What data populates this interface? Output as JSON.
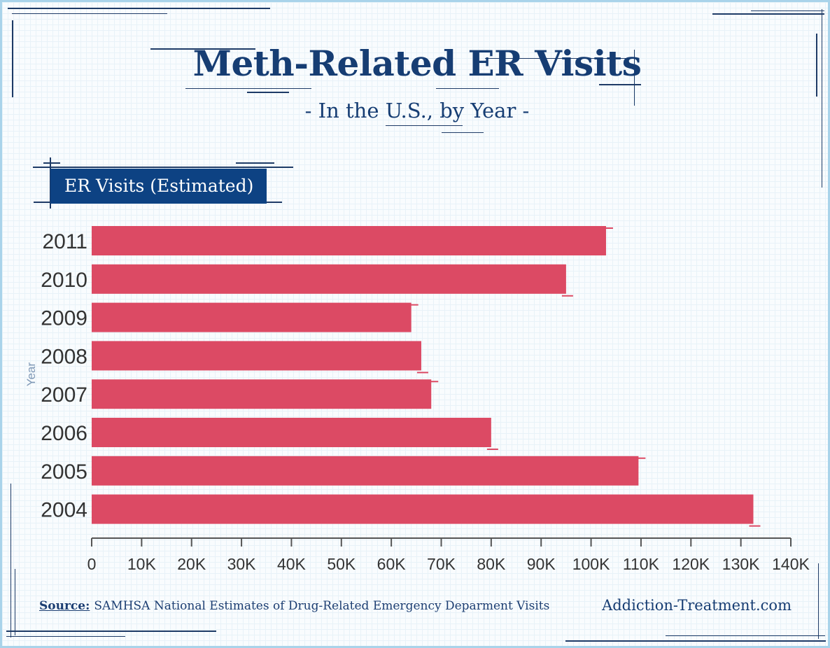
{
  "title": "Meth-Related ER Visits",
  "subtitle": "- In the U.S., by Year -",
  "section_label": "ER Visits (Estimated)",
  "footer": {
    "source_prefix": "Source:",
    "source_text": "SAMHSA National Estimates of Drug-Related Emergency Deparment Visits",
    "brand": "Addiction-Treatment.com"
  },
  "colors": {
    "bar": "#dc4a64",
    "navy": "#163d73",
    "frame": "#a9d3ea"
  },
  "chart_data": {
    "type": "bar",
    "orientation": "horizontal",
    "categories": [
      "2011",
      "2010",
      "2009",
      "2008",
      "2007",
      "2006",
      "2005",
      "2004"
    ],
    "values": [
      103000,
      95000,
      64000,
      66000,
      68000,
      80000,
      109500,
      132500
    ],
    "ylabel": "Year",
    "xlim": [
      0,
      140000
    ],
    "xticks": [
      0,
      10000,
      20000,
      30000,
      40000,
      50000,
      60000,
      70000,
      80000,
      90000,
      100000,
      110000,
      120000,
      130000,
      140000
    ],
    "xtick_labels": [
      "0",
      "10K",
      "20K",
      "30K",
      "40K",
      "50K",
      "60K",
      "70K",
      "80K",
      "90K",
      "100K",
      "110K",
      "120K",
      "130K",
      "140K"
    ],
    "grid": false,
    "legend": "none"
  }
}
